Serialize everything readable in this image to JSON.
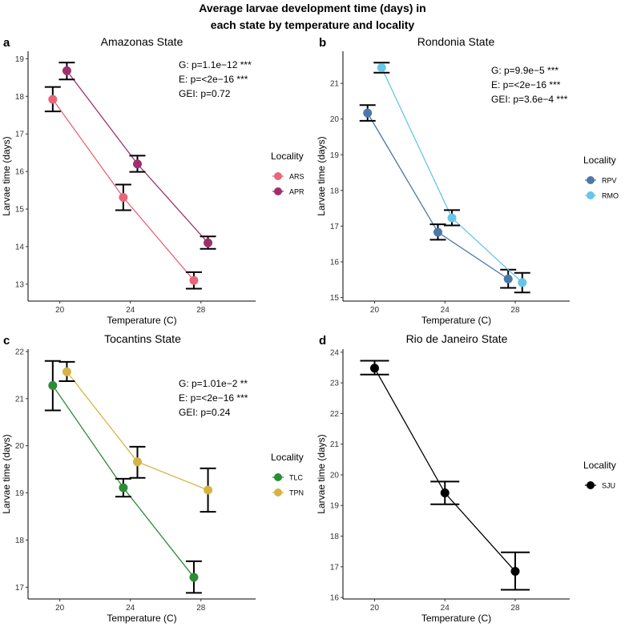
{
  "figure": {
    "title_line1": "Average larvae development time (days) in",
    "title_line2": "each state by temperature and locality"
  },
  "chart_data": [
    {
      "type": "line",
      "panel": "a",
      "title": "Amazonas State",
      "xlabel": "Temperature (C)",
      "ylabel": "Larvae time (days)",
      "x_ticks": [
        20,
        24,
        28
      ],
      "y_ticks": [
        13,
        14,
        15,
        16,
        17,
        18,
        19
      ],
      "xlim": [
        18.2,
        31.1
      ],
      "ylim": [
        12.55,
        19.2
      ],
      "grid": false,
      "legend_title": "Locality",
      "legend_position": "right",
      "stats": [
        "G: p=1.1e−12 ***",
        "E: p=<2e−16 ***",
        "GEI: p=0.72"
      ],
      "series": [
        {
          "name": "ARS",
          "color": "#e8667a",
          "x": [
            19.6,
            23.6,
            27.6
          ],
          "y": [
            17.92,
            15.31,
            13.1
          ],
          "err_low": [
            17.6,
            14.97,
            12.88
          ],
          "err_high": [
            18.25,
            15.65,
            13.32
          ]
        },
        {
          "name": "APR",
          "color": "#9e2f6e",
          "x": [
            20.4,
            24.4,
            28.4
          ],
          "y": [
            18.68,
            16.2,
            14.1
          ],
          "err_low": [
            18.45,
            15.99,
            13.94
          ],
          "err_high": [
            18.9,
            16.42,
            14.27
          ]
        }
      ]
    },
    {
      "type": "line",
      "panel": "b",
      "title": "Rondonia State",
      "xlabel": "Temperature (C)",
      "ylabel": "Larvae time (days)",
      "x_ticks": [
        20,
        24,
        28
      ],
      "y_ticks": [
        15,
        16,
        17,
        18,
        19,
        20,
        21
      ],
      "xlim": [
        18.2,
        31.1
      ],
      "ylim": [
        14.9,
        21.9
      ],
      "grid": false,
      "legend_title": "Locality",
      "legend_position": "right",
      "stats": [
        "G: p=9.9e−5 ***",
        "E: p=<2e−16 ***",
        "GEI: p=3.6e−4 ***"
      ],
      "series": [
        {
          "name": "RPV",
          "color": "#4a78a8",
          "x": [
            19.6,
            23.6,
            27.6
          ],
          "y": [
            20.17,
            16.83,
            15.52
          ],
          "err_low": [
            19.95,
            16.62,
            15.27
          ],
          "err_high": [
            20.39,
            17.05,
            15.78
          ]
        },
        {
          "name": "RMO",
          "color": "#66c5e8",
          "x": [
            20.4,
            24.4,
            28.4
          ],
          "y": [
            21.44,
            17.23,
            15.42
          ],
          "err_low": [
            21.3,
            17.02,
            15.14
          ],
          "err_high": [
            21.58,
            17.45,
            15.69
          ]
        }
      ]
    },
    {
      "type": "line",
      "panel": "c",
      "title": "Tocantins State",
      "xlabel": "Temperature (C)",
      "ylabel": "Larvae time (days)",
      "x_ticks": [
        20,
        24,
        28
      ],
      "y_ticks": [
        17,
        18,
        19,
        20,
        21,
        22
      ],
      "xlim": [
        18.2,
        31.1
      ],
      "ylim": [
        16.75,
        22.05
      ],
      "grid": false,
      "legend_title": "Locality",
      "legend_position": "right",
      "stats": [
        "G: p=1.01e−2 **",
        "E: p=<2e−16 ***",
        "GEI: p=0.24"
      ],
      "series": [
        {
          "name": "TLC",
          "color": "#2e8b36",
          "x": [
            19.6,
            23.6,
            27.6
          ],
          "y": [
            21.28,
            19.11,
            17.21
          ],
          "err_low": [
            20.75,
            18.92,
            16.88
          ],
          "err_high": [
            21.8,
            19.3,
            17.55
          ]
        },
        {
          "name": "TPN",
          "color": "#d4b444",
          "x": [
            20.4,
            24.4,
            28.4
          ],
          "y": [
            21.57,
            19.66,
            19.06
          ],
          "err_low": [
            21.37,
            19.32,
            18.6
          ],
          "err_high": [
            21.78,
            19.98,
            19.52
          ]
        }
      ]
    },
    {
      "type": "line",
      "panel": "d",
      "title": "Rio de Janeiro State",
      "xlabel": "Temperature (C)",
      "ylabel": "Larvae time (days)",
      "x_ticks": [
        20,
        24,
        28
      ],
      "y_ticks": [
        16,
        17,
        18,
        19,
        20,
        21,
        22,
        23,
        24
      ],
      "xlim": [
        18.2,
        31.1
      ],
      "ylim": [
        15.95,
        24.1
      ],
      "grid": false,
      "legend_title": "Locality",
      "legend_position": "right",
      "stats": [],
      "series": [
        {
          "name": "SJU",
          "color": "#000000",
          "x": [
            20,
            24,
            28
          ],
          "y": [
            23.48,
            19.41,
            16.85
          ],
          "err_low": [
            23.27,
            19.04,
            16.25
          ],
          "err_high": [
            23.72,
            19.78,
            17.47
          ]
        }
      ]
    }
  ]
}
